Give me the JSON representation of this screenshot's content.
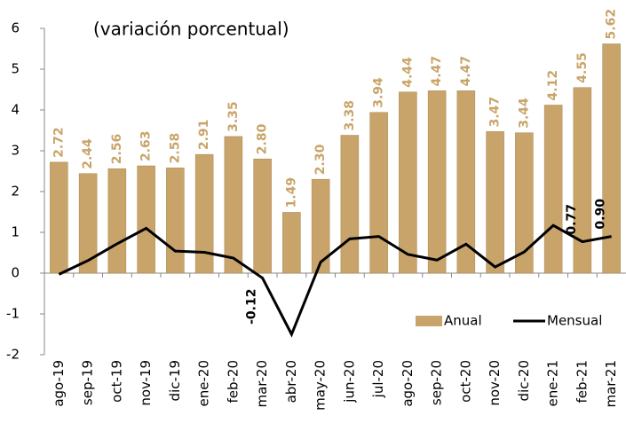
{
  "chart_data": {
    "type": "bar_line",
    "subtitle": "(variación porcentual)",
    "categories": [
      "ago-19",
      "sep-19",
      "oct-19",
      "nov-19",
      "dic-19",
      "ene-20",
      "feb-20",
      "mar-20",
      "abr-20",
      "may-20",
      "jun-20",
      "jul-20",
      "ago-20",
      "sep-20",
      "oct-20",
      "nov-20",
      "dic-20",
      "ene-21",
      "feb-21",
      "mar-21"
    ],
    "series": [
      {
        "name": "Anual",
        "type": "bar",
        "color": "#c9a46a",
        "values": [
          2.72,
          2.44,
          2.56,
          2.63,
          2.58,
          2.91,
          3.35,
          2.8,
          1.49,
          2.3,
          3.38,
          3.94,
          4.44,
          4.47,
          4.47,
          3.47,
          3.44,
          4.12,
          4.55,
          5.62
        ],
        "value_labels": [
          "2.72",
          "2.44",
          "2.56",
          "2.63",
          "2.58",
          "2.91",
          "3.35",
          "2.80",
          "1.49",
          "2.30",
          "3.38",
          "3.94",
          "4.44",
          "4.47",
          "4.47",
          "3.47",
          "3.44",
          "4.12",
          "4.55",
          "5.62"
        ]
      },
      {
        "name": "Mensual",
        "type": "line",
        "color": "#000000",
        "values": [
          -0.03,
          0.31,
          0.72,
          1.1,
          0.54,
          0.51,
          0.37,
          -0.12,
          -1.5,
          0.27,
          0.84,
          0.9,
          0.46,
          0.32,
          0.71,
          0.15,
          0.52,
          1.17,
          0.77,
          0.9
        ],
        "value_labels": [
          null,
          null,
          null,
          null,
          null,
          null,
          null,
          "-0.12",
          null,
          null,
          null,
          null,
          null,
          null,
          null,
          null,
          null,
          null,
          "0.77",
          "0.90"
        ]
      }
    ],
    "ylim": [
      -2,
      6
    ],
    "yticks": [
      -2,
      -1,
      0,
      1,
      2,
      3,
      4,
      5,
      6
    ],
    "legend": "lower right"
  }
}
